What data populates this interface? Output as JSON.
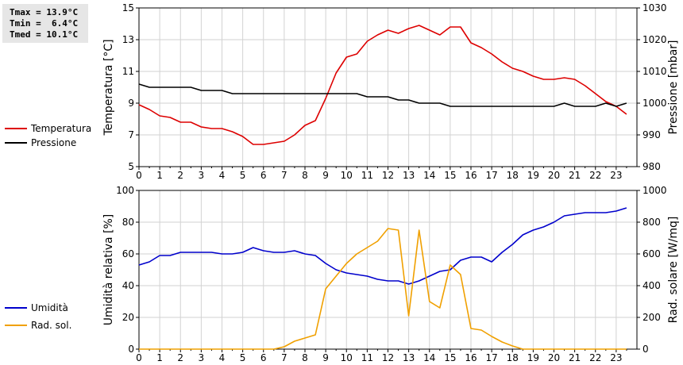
{
  "stats": {
    "tmax": "Tmax = 13.9°C",
    "tmin": "Tmin =  6.4°C",
    "tmed": "Tmed = 10.1°C"
  },
  "legend_top": [
    {
      "label": "Temperatura",
      "color": "#dd0000"
    },
    {
      "label": "Pressione",
      "color": "#000000"
    }
  ],
  "legend_bottom": [
    {
      "label": "Umidità",
      "color": "#0000cc"
    },
    {
      "label": "Rad. sol.",
      "color": "#f0a000"
    }
  ],
  "chart_data": [
    {
      "type": "line",
      "x_ticks": [
        "0",
        "1",
        "2",
        "3",
        "4",
        "5",
        "6",
        "7",
        "8",
        "9",
        "10",
        "11",
        "12",
        "13",
        "14",
        "15",
        "16",
        "17",
        "18",
        "19",
        "20",
        "21",
        "22",
        "23"
      ],
      "xlim": [
        0,
        24
      ],
      "ylabel": "Temperatura [°C]",
      "ylim": [
        5,
        15
      ],
      "y_ticks": [
        "5",
        "7",
        "9",
        "11",
        "13",
        "15"
      ],
      "ylabel_right": "Pressione [mbar]",
      "ylim_right": [
        980,
        1030
      ],
      "y_ticks_right": [
        "980",
        "990",
        "1000",
        "1010",
        "1020",
        "1030"
      ],
      "grid": true,
      "series": [
        {
          "name": "Temperatura",
          "color": "#dd0000",
          "axis": "left",
          "x": [
            0,
            0.5,
            1,
            1.5,
            2,
            2.5,
            3,
            3.5,
            4,
            4.5,
            5,
            5.5,
            6,
            6.5,
            7,
            7.5,
            8,
            8.5,
            9,
            9.5,
            10,
            10.5,
            11,
            11.5,
            12,
            12.5,
            13,
            13.5,
            14,
            14.5,
            15,
            15.5,
            16,
            16.5,
            17,
            17.5,
            18,
            18.5,
            19,
            19.5,
            20,
            20.5,
            21,
            21.5,
            22,
            22.5,
            23,
            23.5
          ],
          "y": [
            8.9,
            8.6,
            8.2,
            8.1,
            7.8,
            7.8,
            7.5,
            7.4,
            7.4,
            7.2,
            6.9,
            6.4,
            6.4,
            6.5,
            6.6,
            7.0,
            7.6,
            7.9,
            9.3,
            10.9,
            11.9,
            12.1,
            12.9,
            13.3,
            13.6,
            13.4,
            13.7,
            13.9,
            13.6,
            13.3,
            13.8,
            13.8,
            12.8,
            12.5,
            12.1,
            11.6,
            11.2,
            11.0,
            10.7,
            10.5,
            10.5,
            10.6,
            10.5,
            10.1,
            9.6,
            9.1,
            8.8,
            8.3
          ]
        },
        {
          "name": "Pressione",
          "color": "#000000",
          "axis": "right",
          "x": [
            0,
            0.5,
            1,
            1.5,
            2,
            2.5,
            3,
            3.5,
            4,
            4.5,
            5,
            5.5,
            6,
            6.5,
            7,
            7.5,
            8,
            8.5,
            9,
            9.5,
            10,
            10.5,
            11,
            11.5,
            12,
            12.5,
            13,
            13.5,
            14,
            14.5,
            15,
            15.5,
            16,
            16.5,
            17,
            17.5,
            18,
            18.5,
            19,
            19.5,
            20,
            20.5,
            21,
            21.5,
            22,
            22.5,
            23,
            23.5
          ],
          "y": [
            1006,
            1005,
            1005,
            1005,
            1005,
            1005,
            1004,
            1004,
            1004,
            1003,
            1003,
            1003,
            1003,
            1003,
            1003,
            1003,
            1003,
            1003,
            1003,
            1003,
            1003,
            1003,
            1002,
            1002,
            1002,
            1001,
            1001,
            1000,
            1000,
            1000,
            999,
            999,
            999,
            999,
            999,
            999,
            999,
            999,
            999,
            999,
            999,
            1000,
            999,
            999,
            999,
            1000,
            999,
            1000
          ]
        }
      ]
    },
    {
      "type": "line",
      "x_ticks": [
        "0",
        "1",
        "2",
        "3",
        "4",
        "5",
        "6",
        "7",
        "8",
        "9",
        "10",
        "11",
        "12",
        "13",
        "14",
        "15",
        "16",
        "17",
        "18",
        "19",
        "20",
        "21",
        "22",
        "23"
      ],
      "xlim": [
        0,
        24
      ],
      "ylabel": "Umidità relativa [%]",
      "ylim": [
        0,
        100
      ],
      "y_ticks": [
        "0",
        "20",
        "40",
        "60",
        "80",
        "100"
      ],
      "ylabel_right": "Rad. solare [W/mq]",
      "ylim_right": [
        0,
        1000
      ],
      "y_ticks_right": [
        "0",
        "200",
        "400",
        "600",
        "800",
        "1000"
      ],
      "grid": true,
      "series": [
        {
          "name": "Umidità",
          "color": "#0000cc",
          "axis": "left",
          "x": [
            0,
            0.5,
            1,
            1.5,
            2,
            2.5,
            3,
            3.5,
            4,
            4.5,
            5,
            5.5,
            6,
            6.5,
            7,
            7.5,
            8,
            8.5,
            9,
            9.5,
            10,
            10.5,
            11,
            11.5,
            12,
            12.5,
            13,
            13.5,
            14,
            14.5,
            15,
            15.5,
            16,
            16.5,
            17,
            17.5,
            18,
            18.5,
            19,
            19.5,
            20,
            20.5,
            21,
            21.5,
            22,
            22.5,
            23,
            23.5
          ],
          "y": [
            53,
            55,
            59,
            59,
            61,
            61,
            61,
            61,
            60,
            60,
            61,
            64,
            62,
            61,
            61,
            62,
            60,
            59,
            54,
            50,
            48,
            47,
            46,
            44,
            43,
            43,
            41,
            43,
            46,
            49,
            50,
            56,
            58,
            58,
            55,
            61,
            66,
            72,
            75,
            77,
            80,
            84,
            85,
            86,
            86,
            86,
            87,
            89
          ]
        },
        {
          "name": "Rad. sol.",
          "color": "#f0a000",
          "axis": "right",
          "x": [
            0,
            0.5,
            1,
            1.5,
            2,
            2.5,
            3,
            3.5,
            4,
            4.5,
            5,
            5.5,
            6,
            6.5,
            7,
            7.5,
            8,
            8.5,
            9,
            9.5,
            10,
            10.5,
            11,
            11.5,
            12,
            12.5,
            13,
            13.5,
            14,
            14.5,
            15,
            15.5,
            16,
            16.5,
            17,
            17.5,
            18,
            18.5,
            19,
            19.5,
            20,
            20.5,
            21,
            21.5,
            22,
            22.5,
            23,
            23.5
          ],
          "y": [
            0,
            0,
            0,
            0,
            0,
            0,
            0,
            0,
            0,
            0,
            0,
            0,
            0,
            0,
            15,
            50,
            70,
            90,
            380,
            460,
            540,
            600,
            640,
            680,
            760,
            750,
            210,
            750,
            300,
            260,
            530,
            470,
            130,
            120,
            80,
            45,
            20,
            0,
            0,
            0,
            0,
            0,
            0,
            0,
            0,
            0,
            0,
            0
          ]
        }
      ]
    }
  ]
}
